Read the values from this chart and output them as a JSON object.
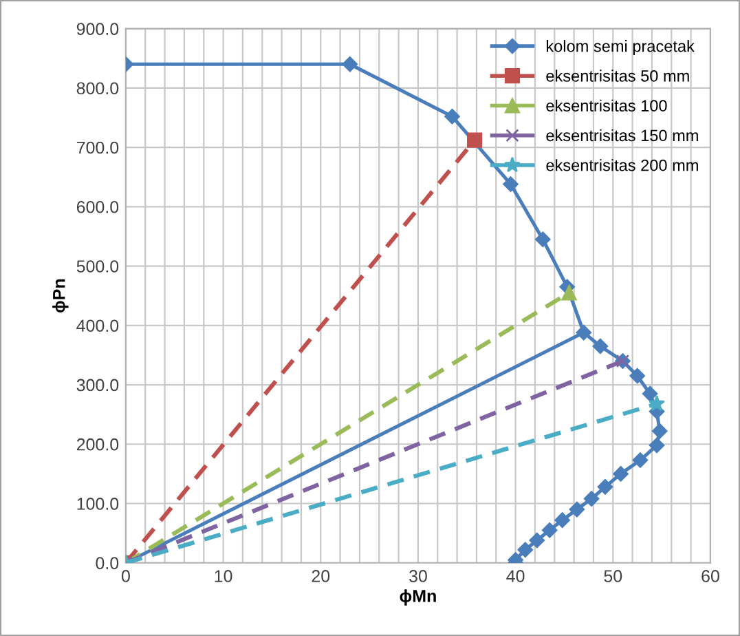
{
  "chart_data": {
    "type": "line",
    "xlabel": "ϕMn",
    "ylabel": "ϕPn",
    "xlim": [
      0,
      60
    ],
    "ylim": [
      0,
      900
    ],
    "xticks": [
      0,
      {
        "value": 2,
        "label": null
      },
      {
        "value": 4,
        "label": null
      },
      {
        "value": 6,
        "label": null
      },
      {
        "value": 8,
        "label": null
      },
      10,
      {
        "value": 12,
        "label": null
      },
      {
        "value": 14,
        "label": null
      },
      {
        "value": 16,
        "label": null
      },
      {
        "value": 18,
        "label": null
      },
      20,
      {
        "value": 22,
        "label": null
      },
      {
        "value": 24,
        "label": null
      },
      {
        "value": 26,
        "label": null
      },
      {
        "value": 28,
        "label": null
      },
      30,
      {
        "value": 32,
        "label": null
      },
      {
        "value": 34,
        "label": null
      },
      {
        "value": 36,
        "label": null
      },
      {
        "value": 38,
        "label": null
      },
      40,
      {
        "value": 42,
        "label": null
      },
      {
        "value": 44,
        "label": null
      },
      {
        "value": 46,
        "label": null
      },
      {
        "value": 48,
        "label": null
      },
      50,
      {
        "value": 52,
        "label": null
      },
      {
        "value": 54,
        "label": null
      },
      {
        "value": 56,
        "label": null
      },
      {
        "value": 58,
        "label": null
      },
      60
    ],
    "yticks": [
      {
        "value": 0,
        "label": "0.0"
      },
      {
        "value": 100,
        "label": "100.0"
      },
      {
        "value": 200,
        "label": "200.0"
      },
      {
        "value": 300,
        "label": "300.0"
      },
      {
        "value": 400,
        "label": "400.0"
      },
      {
        "value": 500,
        "label": "500.0"
      },
      {
        "value": 600,
        "label": "600.0"
      },
      {
        "value": 700,
        "label": "700.0"
      },
      {
        "value": 800,
        "label": "800.0"
      },
      {
        "value": 900,
        "label": "900.0"
      }
    ],
    "grid": true,
    "legend": "top right",
    "series": [
      {
        "color": "#4a7ebb",
        "line_style": "solid",
        "x": [
          0,
          47
        ],
        "values": [
          0,
          388
        ]
      },
      {
        "name": "eksentrisitas 50 mm",
        "color": "#c0504d",
        "marker": "square",
        "line_style": "dashed",
        "x": [
          0,
          35.8
        ],
        "values": [
          0,
          712
        ]
      },
      {
        "name": "eksentrisitas 100",
        "color": "#9bbb59",
        "marker": "triangle",
        "line_style": "dashed",
        "x": [
          0,
          45.5
        ],
        "values": [
          0,
          455
        ]
      },
      {
        "name": "eksentrisitas 150 mm",
        "color": "#8064a2",
        "marker": "cross",
        "line_style": "dashed",
        "x": [
          0,
          51
        ],
        "values": [
          0,
          340
        ]
      },
      {
        "name": "eksentrisitas 200 mm",
        "color": "#4bacc6",
        "marker": "star",
        "line_style": "dashed",
        "x": [
          0,
          54.5
        ],
        "values": [
          0,
          268
        ]
      },
      {
        "name": "kolom semi pracetak",
        "color": "#4a7ebb",
        "marker": "diamond",
        "line_style": "solid",
        "x": [
          0,
          23,
          33.5,
          39.5,
          42.8,
          45.3,
          47,
          48.7,
          51,
          52.5,
          53.8,
          54.5,
          54.8,
          54.5,
          52.8,
          50.8,
          49.2,
          47.8,
          46.3,
          44.8,
          43.5,
          42.2,
          41,
          40,
          40
        ],
        "values": [
          840,
          840,
          752,
          638,
          545,
          465,
          388,
          365,
          340,
          315,
          285,
          255,
          222,
          198,
          173,
          150,
          128,
          108,
          90,
          72,
          55,
          38,
          22,
          5,
          0
        ]
      }
    ]
  }
}
